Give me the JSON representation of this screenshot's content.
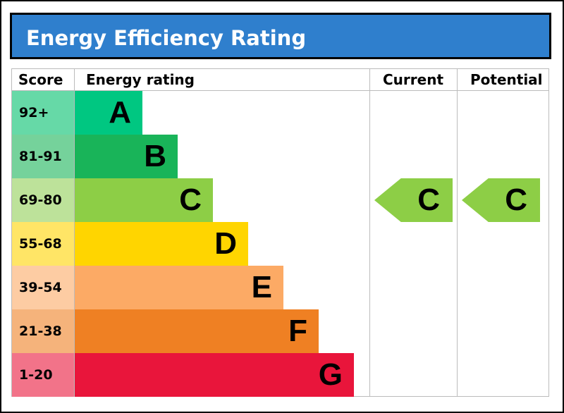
{
  "title": "Energy Efficiency Rating",
  "headers": {
    "score": "Score",
    "energy_rating": "Energy rating",
    "current": "Current",
    "potential": "Potential"
  },
  "chart_data": {
    "type": "table",
    "bands": [
      {
        "letter": "A",
        "score": "92+",
        "color": "#00c781",
        "score_bg": "#66d9a7"
      },
      {
        "letter": "B",
        "score": "81-91",
        "color": "#19b459",
        "score_bg": "#75d29b"
      },
      {
        "letter": "C",
        "score": "69-80",
        "color": "#8dce46",
        "score_bg": "#bde29a"
      },
      {
        "letter": "D",
        "score": "55-68",
        "color": "#ffd500",
        "score_bg": "#ffe566"
      },
      {
        "letter": "E",
        "score": "39-54",
        "color": "#fcaa65",
        "score_bg": "#fdcca3"
      },
      {
        "letter": "F",
        "score": "21-38",
        "color": "#ef8023",
        "score_bg": "#f5b37b"
      },
      {
        "letter": "G",
        "score": "1-20",
        "color": "#e9153b",
        "score_bg": "#f27389"
      }
    ],
    "current": {
      "letter": "C",
      "band_index": 2,
      "color": "#8dce46"
    },
    "potential": {
      "letter": "C",
      "band_index": 2,
      "color": "#8dce46"
    }
  }
}
